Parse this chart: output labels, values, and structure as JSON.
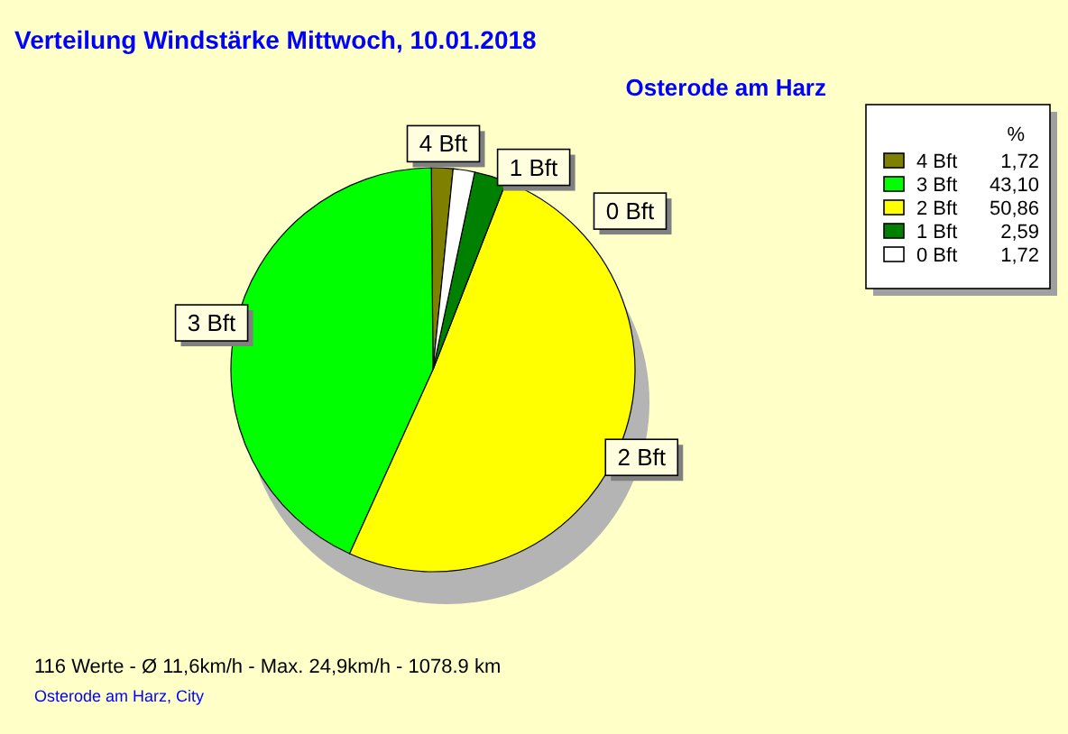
{
  "chart_data": {
    "type": "pie",
    "title": "Verteilung Windstärke  Mittwoch, 10.01.2018",
    "subtitle": "Osterode am Harz",
    "categories": [
      "4 Bft",
      "3 Bft",
      "2 Bft",
      "1 Bft",
      "0 Bft"
    ],
    "values": [
      1.72,
      43.1,
      50.86,
      2.59,
      1.72
    ],
    "colors": [
      "#808000",
      "#00ff00",
      "#ffff00",
      "#008000",
      "#ffffff"
    ],
    "value_labels": [
      "1,72",
      "43,10",
      "50,86",
      "2,59",
      "1,72"
    ],
    "legend_title": "%",
    "legend": "top right",
    "annotations": [
      "116 Werte   -   Ø 11,6km/h  -  Max. 24,9km/h   -   1078.9 km",
      "Osterode am Harz, City"
    ]
  }
}
